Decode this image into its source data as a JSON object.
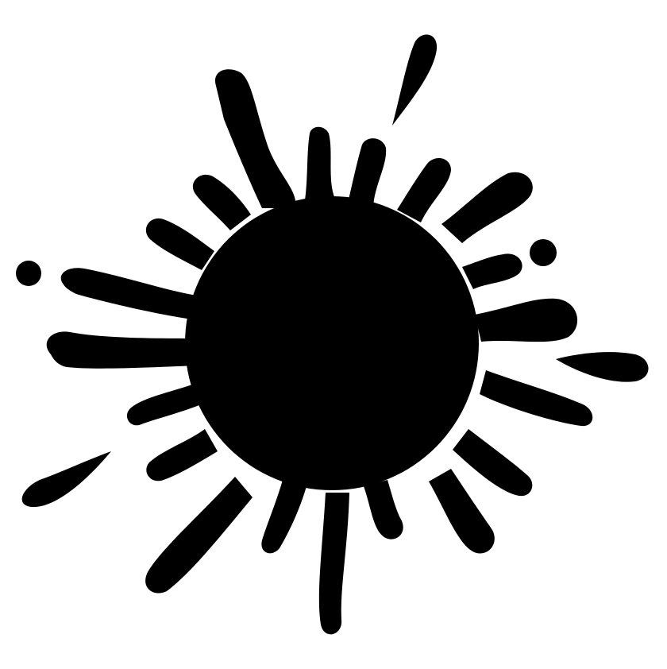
{
  "image": {
    "subject": "ink-splat-icon",
    "colors": {
      "ink": "#000000",
      "background": "#ffffff"
    }
  }
}
